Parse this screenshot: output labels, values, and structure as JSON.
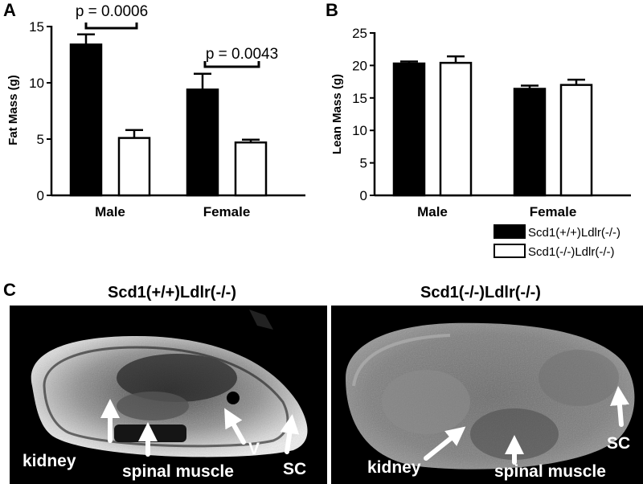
{
  "chart_data": [
    {
      "type": "bar",
      "panel_label": "A",
      "categories": [
        "Male",
        "Female"
      ],
      "series": [
        {
          "values": [
            13.4,
            9.4
          ],
          "errors": [
            0.9,
            1.4
          ],
          "color": "#000000"
        },
        {
          "values": [
            5.1,
            4.7
          ],
          "errors": [
            0.7,
            0.25
          ],
          "color": "#ffffff"
        }
      ],
      "ylabel": "Fat Mass (g)",
      "ylim": [
        0,
        15
      ],
      "yticks": [
        0,
        5,
        10,
        15
      ],
      "annotations": [
        "p = 0.0006",
        "p = 0.0043"
      ]
    },
    {
      "type": "bar",
      "panel_label": "B",
      "categories": [
        "Male",
        "Female"
      ],
      "series": [
        {
          "name": "Scd1(+/+)Ldlr(-/-)",
          "values": [
            20.3,
            16.4
          ],
          "errors": [
            0.3,
            0.5
          ],
          "color": "#000000"
        },
        {
          "name": "Scd1(-/-)Ldlr(-/-)",
          "values": [
            20.4,
            17.0
          ],
          "errors": [
            1.0,
            0.8
          ],
          "color": "#ffffff"
        }
      ],
      "ylabel": "Lean Mass (g)",
      "ylim": [
        0,
        25
      ],
      "yticks": [
        0,
        5,
        10,
        15,
        20,
        25
      ],
      "legend": "bottom-right"
    }
  ],
  "panel_c": {
    "panel_label": "C",
    "images": [
      {
        "title": "Scd1(+/+)Ldlr(-/-)",
        "labels": [
          "kidney",
          "spinal muscle",
          "V",
          "SC"
        ]
      },
      {
        "title": "Scd1(-/-)Ldlr(-/-)",
        "labels": [
          "kidney",
          "spinal muscle",
          "SC"
        ]
      }
    ]
  }
}
